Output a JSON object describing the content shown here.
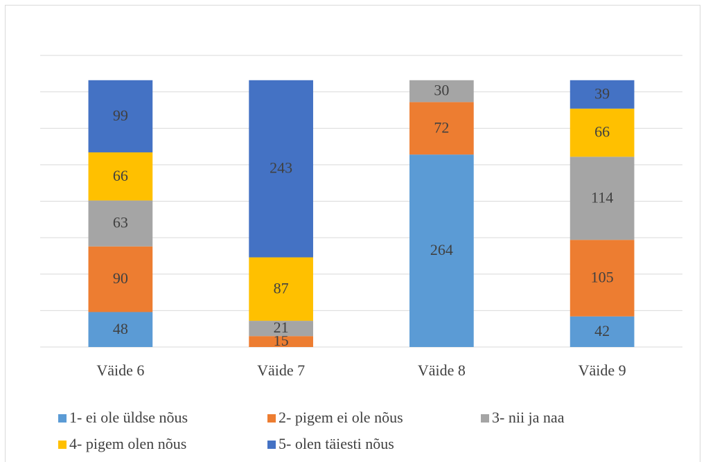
{
  "chart_data": {
    "type": "bar",
    "stacked": true,
    "categories": [
      "Väide 6",
      "Väide 7",
      "Väide 8",
      "Väide 9"
    ],
    "series": [
      {
        "name": "1- ei ole üldse nõus",
        "color": "#5b9bd5",
        "values": [
          48,
          null,
          264,
          42
        ]
      },
      {
        "name": "2- pigem ei ole nõus",
        "color": "#ed7d31",
        "values": [
          90,
          15,
          72,
          105
        ]
      },
      {
        "name": "3- nii ja naa",
        "color": "#a5a5a5",
        "values": [
          63,
          21,
          30,
          114
        ]
      },
      {
        "name": "4- pigem olen nõus",
        "color": "#ffc000",
        "values": [
          66,
          87,
          null,
          66
        ]
      },
      {
        "name": "5- olen täiesti nõus",
        "color": "#4472c4",
        "values": [
          99,
          243,
          null,
          39
        ]
      }
    ],
    "ylim": [
      0,
      400
    ],
    "yticks": [
      0,
      50,
      100,
      150,
      200,
      250,
      300,
      350,
      400
    ],
    "grid": true,
    "legend": "bottom"
  }
}
